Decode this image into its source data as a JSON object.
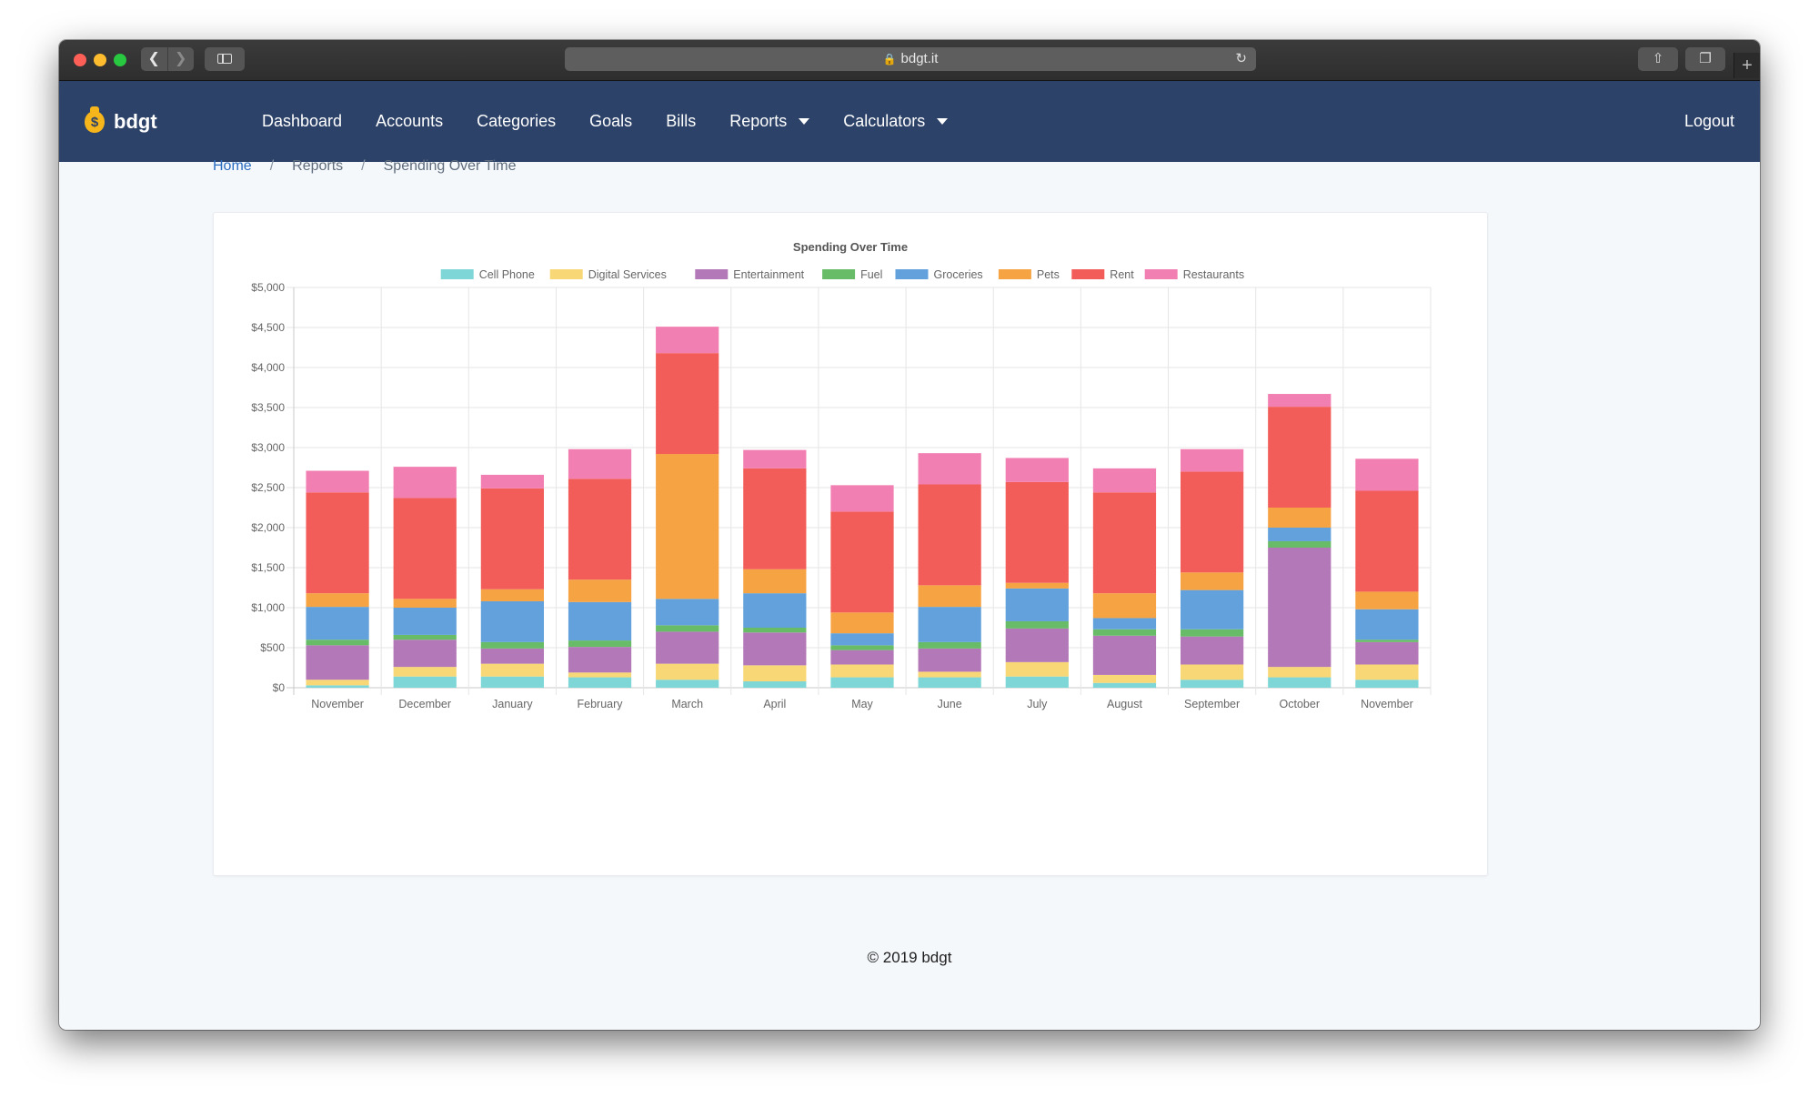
{
  "browser": {
    "url": "bdgt.it",
    "icons": {
      "back": "chevron-left-icon",
      "forward": "chevron-right-icon",
      "sidebar": "sidebar-icon",
      "lock": "lock-icon",
      "reload": "reload-icon",
      "share": "share-icon",
      "tabs": "tabs-icon",
      "new_tab": "plus-icon"
    }
  },
  "navbar": {
    "brand": "bdgt",
    "brand_icon": "money-bag-icon",
    "links": [
      {
        "label": "Dashboard"
      },
      {
        "label": "Accounts"
      },
      {
        "label": "Categories"
      },
      {
        "label": "Goals"
      },
      {
        "label": "Bills"
      },
      {
        "label": "Reports",
        "dropdown": true
      },
      {
        "label": "Calculators",
        "dropdown": true
      }
    ],
    "logout": "Logout",
    "background": "#2c4268"
  },
  "breadcrumb": {
    "items": [
      "Home",
      "Reports",
      "Spending Over Time"
    ],
    "separator": "/"
  },
  "chart_data": {
    "type": "bar",
    "stacked": true,
    "title": "Spending Over Time",
    "legend_position": "top",
    "grid": true,
    "ylim": [
      0,
      5000
    ],
    "y_ticks": [
      "$0",
      "$500",
      "$1,000",
      "$1,500",
      "$2,000",
      "$2,500",
      "$3,000",
      "$3,500",
      "$4,000",
      "$4,500",
      "$5,000"
    ],
    "categories": [
      "November",
      "December",
      "January",
      "February",
      "March",
      "April",
      "May",
      "June",
      "July",
      "August",
      "September",
      "October",
      "November"
    ],
    "series": [
      {
        "name": "Cell Phone",
        "color": "#7ed6d6",
        "values": [
          30,
          140,
          140,
          130,
          100,
          80,
          130,
          130,
          140,
          60,
          100,
          130,
          100
        ]
      },
      {
        "name": "Digital Services",
        "color": "#f8d776",
        "values": [
          70,
          120,
          160,
          60,
          200,
          200,
          160,
          70,
          180,
          100,
          190,
          130,
          190
        ]
      },
      {
        "name": "Entertainment",
        "color": "#b378b7",
        "values": [
          430,
          340,
          190,
          320,
          400,
          410,
          180,
          290,
          420,
          490,
          350,
          1490,
          280
        ]
      },
      {
        "name": "Fuel",
        "color": "#68bc68",
        "values": [
          70,
          60,
          80,
          80,
          80,
          60,
          60,
          80,
          90,
          80,
          90,
          80,
          30
        ]
      },
      {
        "name": "Groceries",
        "color": "#62a1db",
        "values": [
          410,
          340,
          510,
          480,
          330,
          430,
          150,
          440,
          410,
          140,
          490,
          170,
          380
        ]
      },
      {
        "name": "Pets",
        "color": "#f6a343",
        "values": [
          170,
          110,
          150,
          280,
          1810,
          300,
          260,
          270,
          70,
          310,
          220,
          250,
          220
        ]
      },
      {
        "name": "Rent",
        "color": "#f25d59",
        "values": [
          1260,
          1260,
          1260,
          1260,
          1260,
          1260,
          1260,
          1260,
          1260,
          1260,
          1260,
          1260,
          1260
        ]
      },
      {
        "name": "Restaurants",
        "color": "#f27fb1",
        "values": [
          270,
          390,
          170,
          370,
          330,
          230,
          330,
          390,
          300,
          300,
          280,
          160,
          400
        ]
      }
    ]
  },
  "footer": {
    "text": "© 2019 bdgt"
  }
}
